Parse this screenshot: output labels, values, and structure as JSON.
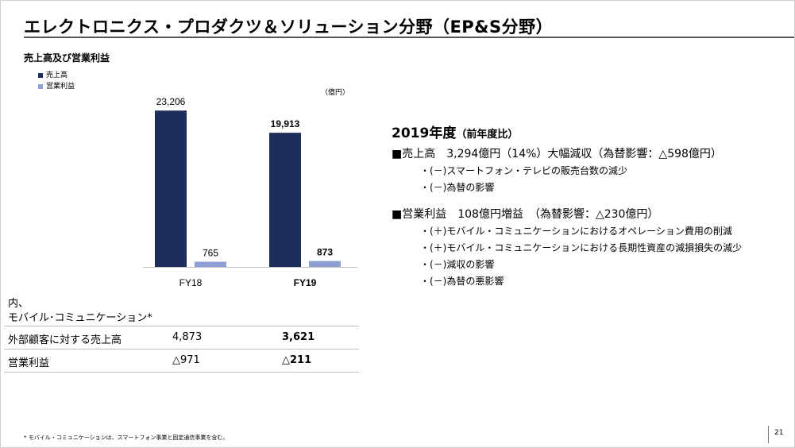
{
  "title": "エレクトロニクス・プロダクツ＆ソリューション分野（EP&S分野）",
  "section_heading": "売上高及び営業利益",
  "legend": [
    {
      "label": "売上高",
      "color": "#1f2d5c"
    },
    {
      "label": "営業利益",
      "color": "#8f9fd1"
    }
  ],
  "unit": "（億円）",
  "chart_data": {
    "type": "bar",
    "categories": [
      "FY18",
      "FY19"
    ],
    "series": [
      {
        "name": "売上高",
        "values": [
          23206,
          19913
        ],
        "labels": [
          "23,206",
          "19,913"
        ],
        "color": "#1f2d5c"
      },
      {
        "name": "営業利益",
        "values": [
          765,
          873
        ],
        "labels": [
          "765",
          "873"
        ],
        "color": "#8f9fd1"
      }
    ],
    "unit": "億円",
    "bold_category": "FY19",
    "ylim": [
      0,
      25000
    ]
  },
  "table": {
    "heading_line1": "内、",
    "heading_line2": "モバイル･コミュニケーション*",
    "rows": [
      {
        "label": "外部顧客に対する売上高",
        "fy18": "4,873",
        "fy19": "3,621"
      },
      {
        "label": "営業利益",
        "fy18": "△971",
        "fy19": "△211"
      }
    ]
  },
  "commentary": {
    "heading": "2019年度",
    "heading_note": "（前年度比）",
    "sales": {
      "bullet": "■売上高　3,294億円（14%）大幅減収（為替影響：△598億円）",
      "items": [
        "・(－)スマートフォン・テレビの販売台数の減少",
        "・(－)為替の影響"
      ]
    },
    "profit": {
      "bullet": "■営業利益　108億円増益　（為替影響：△230億円）",
      "items": [
        "・(＋)モバイル・コミュニケーションにおけるオペレーション費用の削減",
        "・(＋)モバイル・コミュニケーションにおける長期性資産の減損損失の減少",
        "・(－)減収の影響",
        "・(－)為替の悪影響"
      ]
    }
  },
  "footnote": "* モバイル・コミュニケーションは、スマートフォン事業と固定通信事業を含む。",
  "page_number": "21"
}
